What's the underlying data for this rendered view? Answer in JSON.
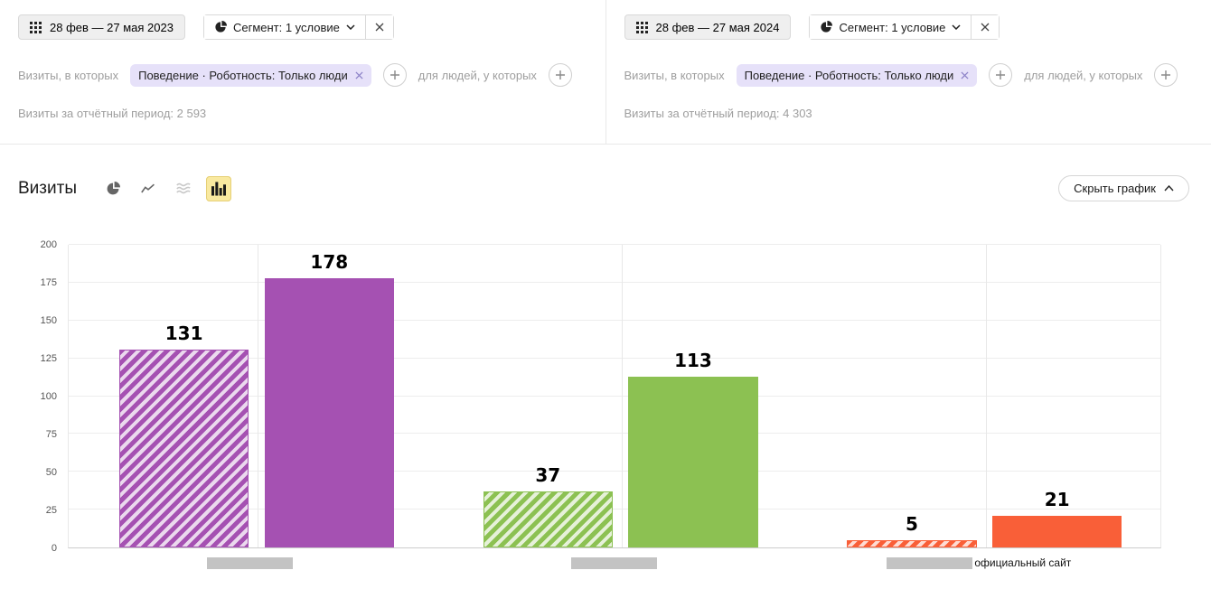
{
  "panel_left": {
    "date_range": "28 фев — 27 мая 2023",
    "segment": "Сегмент: 1 условие",
    "visits_in_which": "Визиты, в которых",
    "condition_chip": "Поведение · Роботность: Только люди",
    "for_people": "для людей, у которых",
    "period_total": "Визиты за отчётный период: 2 593"
  },
  "panel_right": {
    "date_range": "28 фев — 27 мая 2024",
    "segment": "Сегмент: 1 условие",
    "visits_in_which": "Визиты, в которых",
    "condition_chip": "Поведение · Роботность: Только люди",
    "for_people": "для людей, у которых",
    "period_total": "Визиты за отчётный период: 4 303"
  },
  "chart_header": {
    "title": "Визиты",
    "hide_chart": "Скрыть график",
    "chart_type_icons": [
      "pie-chart-icon",
      "line-chart-icon",
      "stacked-area-icon",
      "bar-chart-icon"
    ],
    "selected_icon": "bar-chart-icon",
    "selected_icon_bg": "#f9e9a0"
  },
  "chart_data": {
    "type": "bar",
    "title": "Визиты",
    "categories": [
      {
        "label": "",
        "redacted": true
      },
      {
        "label": "",
        "redacted": true
      },
      {
        "label": "официальный сайт",
        "redacted": true
      }
    ],
    "series": [
      {
        "name": "28 фев — 27 мая 2023",
        "style": "hatched",
        "values": [
          131,
          37,
          5
        ]
      },
      {
        "name": "28 фев — 27 мая 2024",
        "style": "solid",
        "values": [
          178,
          113,
          21
        ]
      }
    ],
    "category_colors": [
      "#a551b2",
      "#8cc152",
      "#f95f38"
    ],
    "ylim": [
      0,
      200
    ],
    "yticks": [
      0,
      25,
      50,
      75,
      100,
      125,
      150,
      175,
      200
    ],
    "grid": true,
    "legend": "none"
  }
}
